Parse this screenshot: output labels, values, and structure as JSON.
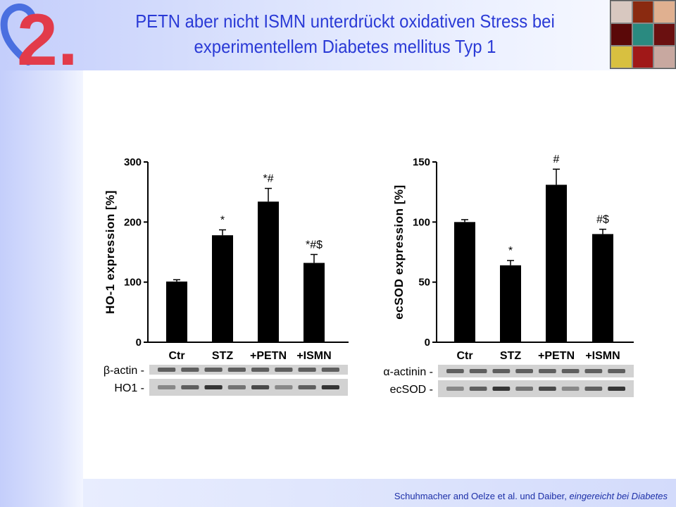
{
  "header": {
    "title_line1": "PETN aber nicht ISMN unterdrückt oxidativen Stress bei",
    "title_line2": "experimentellem Diabetes mellitus Typ 1",
    "logo_text": "2."
  },
  "footer": {
    "authors": "Schuhmacher and Oelze et al. und Daiber, ",
    "status": "eingereicht bei Diabetes"
  },
  "colors": {
    "title": "#2a3ad6",
    "logo_red": "#e23b4a",
    "logo_blue": "#4a6fe0",
    "bar": "#000000"
  },
  "chart_data": [
    {
      "type": "bar",
      "ylabel": "HO-1 expression [%]",
      "categories": [
        "Ctr",
        "STZ",
        "+PETN",
        "+ISMN"
      ],
      "values": [
        101,
        178,
        234,
        132
      ],
      "errors": [
        3,
        9,
        22,
        14
      ],
      "annotations": [
        "",
        "*",
        "*#",
        "*#$"
      ],
      "ylim": [
        0,
        300
      ],
      "yticks": [
        0,
        100,
        200,
        300
      ],
      "blot_labels": [
        "β-actin -",
        "HO1 -"
      ]
    },
    {
      "type": "bar",
      "ylabel": "ecSOD expression [%]",
      "categories": [
        "Ctr",
        "STZ",
        "+PETN",
        "+ISMN"
      ],
      "values": [
        100,
        64,
        131,
        90
      ],
      "errors": [
        2,
        4,
        13,
        4
      ],
      "annotations": [
        "",
        "*",
        "#",
        "#$"
      ],
      "ylim": [
        0,
        150
      ],
      "yticks": [
        0,
        50,
        100,
        150
      ],
      "blot_labels": [
        "α-actinin -",
        "ecSOD -"
      ]
    }
  ]
}
